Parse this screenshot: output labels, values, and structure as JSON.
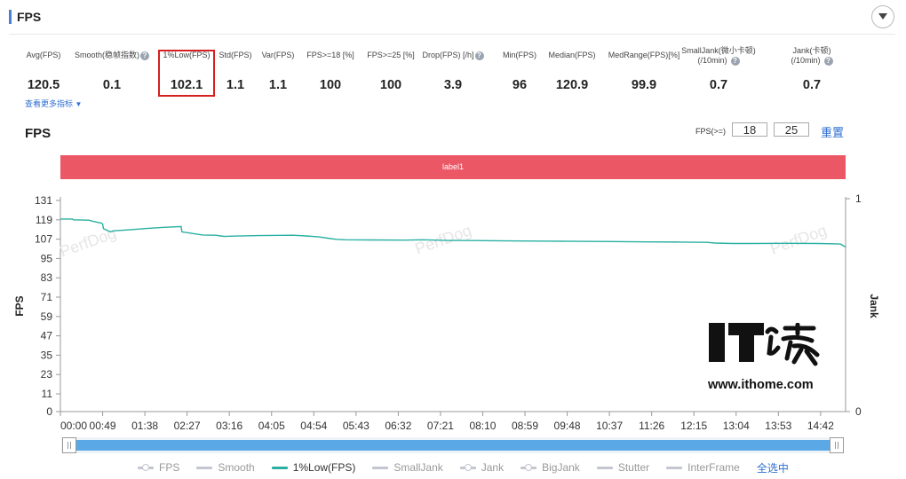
{
  "header": {
    "title": "FPS"
  },
  "metrics": [
    {
      "label": "Avg(FPS)",
      "value": "120.5",
      "help": false
    },
    {
      "label": "Smooth(稳帧指数)",
      "value": "0.1",
      "help": true
    },
    {
      "label": "1%Low(FPS)",
      "value": "102.1",
      "help": false,
      "highlighted": true
    },
    {
      "label": "Std(FPS)",
      "value": "1.1",
      "help": false
    },
    {
      "label": "Var(FPS)",
      "value": "1.1",
      "help": false
    },
    {
      "label": "FPS>=18 [%]",
      "value": "100",
      "help": false
    },
    {
      "label": "FPS>=25 [%]",
      "value": "100",
      "help": false
    },
    {
      "label": "Drop(FPS) [/h]",
      "value": "3.9",
      "help": true
    },
    {
      "label": "Min(FPS)",
      "value": "96",
      "help": false
    },
    {
      "label": "Median(FPS)",
      "value": "120.9",
      "help": false
    },
    {
      "label": "MedRange(FPS)[%]",
      "value": "99.9",
      "help": false
    },
    {
      "label": "SmallJank(微小卡顿)",
      "label2": "(/10min)",
      "value": "0.7",
      "help": true
    },
    {
      "label": "Jank(卡顿)",
      "label2": "(/10min)",
      "value": "0.7",
      "help": true
    }
  ],
  "more_metrics": "查看更多指标",
  "chart_title": "FPS",
  "threshold": {
    "label": "FPS(>=)",
    "low": "18",
    "high": "25",
    "reset": "重置"
  },
  "label_band": "label1",
  "watermark": {
    "text": "PerfDog",
    "url": "www.ithome.com"
  },
  "colors": {
    "fps_line": "#2ab0a2",
    "label_band": "#ec5766",
    "highlight_box": "#d61f1f",
    "link": "#2f6fd0",
    "slider": "#5aa9e6"
  },
  "chart_data": {
    "type": "line",
    "xlabel": "",
    "ylabel": "FPS",
    "y2label": "Jank",
    "ylim": [
      0,
      131
    ],
    "y2lim": [
      0,
      1
    ],
    "y_ticks": [
      0,
      11,
      23,
      35,
      47,
      59,
      71,
      83,
      95,
      107,
      119,
      131
    ],
    "y2_ticks": [
      0,
      1
    ],
    "xlim_seconds": [
      0,
      911
    ],
    "x_tick_labels": [
      "00:00",
      "00:49",
      "01:38",
      "02:27",
      "03:16",
      "04:05",
      "04:54",
      "05:43",
      "06:32",
      "07:21",
      "08:10",
      "08:59",
      "09:48",
      "10:37",
      "11:26",
      "12:15",
      "13:04",
      "13:53",
      "14:42"
    ],
    "x_tick_seconds": [
      0,
      49,
      98,
      147,
      196,
      245,
      294,
      343,
      392,
      441,
      490,
      539,
      588,
      637,
      686,
      735,
      784,
      833,
      882
    ],
    "grid": false,
    "series": [
      {
        "name": "1%Low(FPS)",
        "x_seconds": [
          0,
          14,
          15,
          33,
          38,
          47,
          49,
          50,
          58,
          62,
          80,
          100,
          120,
          140,
          141,
          150,
          165,
          180,
          190,
          200,
          230,
          270,
          285,
          300,
          310,
          320,
          330,
          360,
          400,
          420,
          450,
          480,
          520,
          560,
          600,
          640,
          680,
          720,
          750,
          760,
          780,
          800,
          840,
          880,
          905,
          911
        ],
        "values": [
          119.5,
          119.5,
          119,
          118.8,
          118,
          117,
          116.5,
          113.5,
          111.5,
          112.2,
          112.8,
          113.6,
          114.3,
          114.8,
          111.5,
          110.8,
          109.6,
          109.4,
          108.7,
          108.9,
          109.2,
          109.4,
          109.0,
          108.4,
          107.6,
          106.9,
          106.6,
          106.5,
          106.4,
          106.6,
          106.2,
          106.1,
          105.9,
          105.8,
          105.6,
          105.5,
          105.3,
          105.2,
          105.0,
          104.6,
          104.3,
          104.3,
          104.4,
          104.3,
          104.0,
          102.1
        ]
      }
    ],
    "legend": {
      "placement": "bottom",
      "entries": [
        {
          "name": "FPS",
          "active": false,
          "marker": "dot"
        },
        {
          "name": "Smooth",
          "active": false,
          "marker": "line"
        },
        {
          "name": "1%Low(FPS)",
          "active": true,
          "marker": "line"
        },
        {
          "name": "SmallJank",
          "active": false,
          "marker": "line"
        },
        {
          "name": "Jank",
          "active": false,
          "marker": "dot"
        },
        {
          "name": "BigJank",
          "active": false,
          "marker": "dot"
        },
        {
          "name": "Stutter",
          "active": false,
          "marker": "line"
        },
        {
          "name": "InterFrame",
          "active": false,
          "marker": "line"
        }
      ],
      "select_all": "全选中"
    }
  }
}
